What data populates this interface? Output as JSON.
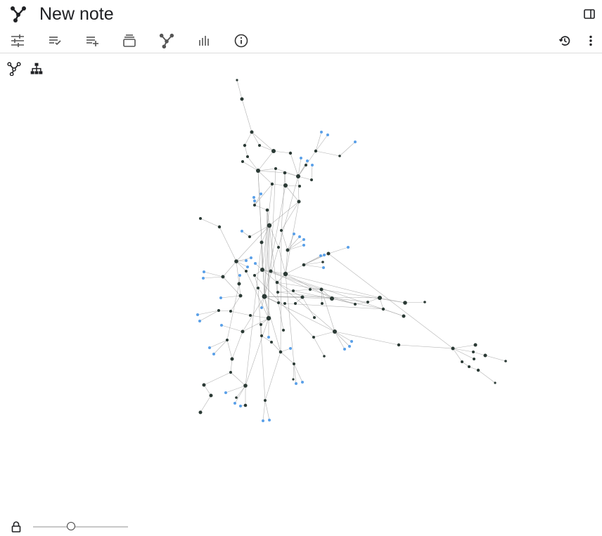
{
  "note": {
    "title": "New note"
  },
  "toolbar": {
    "items": [
      {
        "name": "properties-button",
        "icon": "sliders-icon"
      },
      {
        "name": "checklist-button",
        "icon": "checklist-icon"
      },
      {
        "name": "add-list-button",
        "icon": "playlist-add-icon"
      },
      {
        "name": "collections-button",
        "icon": "stack-icon"
      },
      {
        "name": "graph-button",
        "icon": "graph-icon"
      },
      {
        "name": "statistics-button",
        "icon": "bar-chart-icon"
      },
      {
        "name": "info-button",
        "icon": "info-icon"
      }
    ],
    "right": [
      {
        "name": "history-button",
        "icon": "history-icon"
      },
      {
        "name": "more-menu-button",
        "icon": "more-vert-icon"
      }
    ]
  },
  "graph_view": {
    "modes": [
      {
        "name": "graph-mode-network",
        "icon": "graph-icon"
      },
      {
        "name": "graph-mode-tree",
        "icon": "tree-icon"
      }
    ],
    "colors": {
      "node": "#2b3a35",
      "leaf": "#5aa0e8",
      "edge": "#9a9a9a"
    },
    "zoom_level": 0.4
  }
}
